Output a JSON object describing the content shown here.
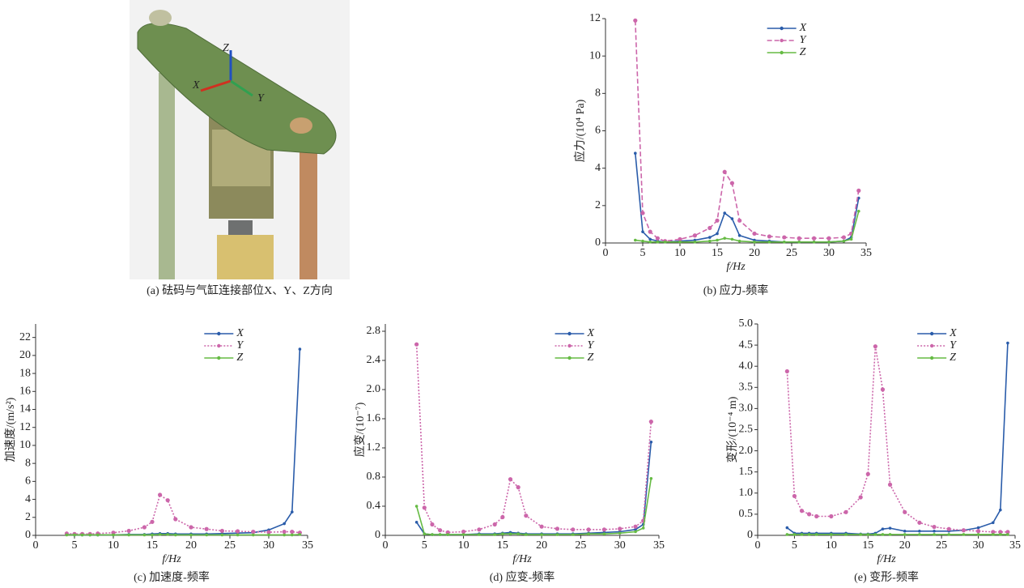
{
  "figure_a": {
    "caption": "(a) 砝码与气缸连接部位X、Y、Z方向",
    "axis_labels": [
      "Z",
      "X",
      "Y"
    ]
  },
  "chart_data": [
    {
      "type": "line",
      "caption": "(b) 应力-频率",
      "ylabel": "应力/(10⁴ Pa)",
      "xlabel": "f/Hz",
      "legend": "upper right",
      "x": [
        4,
        5,
        6,
        7,
        8,
        10,
        12,
        14,
        15,
        16,
        17,
        18,
        20,
        22,
        24,
        26,
        28,
        30,
        32,
        33,
        34
      ],
      "xlim": [
        0,
        35
      ],
      "xticks": [
        0,
        5,
        10,
        15,
        20,
        25,
        30,
        35
      ],
      "ylim": [
        0,
        12
      ],
      "yticks": [
        0,
        2,
        4,
        6,
        8,
        10,
        12
      ],
      "series": [
        {
          "name": "X",
          "color": "#2a5caa",
          "line_style": "solid",
          "values": [
            4.8,
            0.6,
            0.2,
            0.1,
            0.05,
            0.1,
            0.15,
            0.3,
            0.5,
            1.6,
            1.3,
            0.4,
            0.15,
            0.1,
            0.05,
            0.05,
            0.05,
            0.05,
            0.1,
            0.3,
            2.4
          ]
        },
        {
          "name": "Y",
          "color": "#cc66aa",
          "line_style": "dashed",
          "values": [
            11.9,
            1.6,
            0.6,
            0.25,
            0.1,
            0.2,
            0.4,
            0.8,
            1.2,
            3.8,
            3.2,
            1.2,
            0.5,
            0.35,
            0.3,
            0.25,
            0.25,
            0.25,
            0.3,
            0.5,
            2.8
          ]
        },
        {
          "name": "Z",
          "color": "#66bb44",
          "line_style": "solid",
          "values": [
            0.15,
            0.1,
            0.05,
            0.05,
            0.05,
            0.05,
            0.05,
            0.1,
            0.15,
            0.25,
            0.2,
            0.1,
            0.05,
            0.05,
            0.05,
            0.05,
            0.05,
            0.05,
            0.1,
            0.2,
            1.7
          ]
        }
      ]
    },
    {
      "type": "line",
      "caption": "(c) 加速度-频率",
      "ylabel": "加速度/(m/s²)",
      "xlabel": "f/Hz",
      "legend": "upper right",
      "x": [
        4,
        5,
        6,
        7,
        8,
        10,
        12,
        14,
        15,
        16,
        17,
        18,
        20,
        22,
        24,
        26,
        28,
        30,
        32,
        33,
        34
      ],
      "xlim": [
        0,
        35
      ],
      "xticks": [
        0,
        5,
        10,
        15,
        20,
        25,
        30,
        35
      ],
      "ylim": [
        0,
        23.5
      ],
      "yticks": [
        0,
        2,
        4,
        6,
        8,
        10,
        12,
        14,
        16,
        18,
        20,
        22
      ],
      "series": [
        {
          "name": "X",
          "color": "#2a5caa",
          "line_style": "solid",
          "values": [
            0.1,
            0.05,
            0.05,
            0.05,
            0.05,
            0.05,
            0.1,
            0.1,
            0.15,
            0.2,
            0.2,
            0.15,
            0.15,
            0.15,
            0.2,
            0.25,
            0.3,
            0.6,
            1.3,
            2.6,
            20.7
          ]
        },
        {
          "name": "Y",
          "color": "#cc66aa",
          "line_style": "dotted",
          "values": [
            0.2,
            0.15,
            0.15,
            0.15,
            0.2,
            0.3,
            0.5,
            0.9,
            1.5,
            4.5,
            3.9,
            1.8,
            0.9,
            0.7,
            0.5,
            0.45,
            0.4,
            0.35,
            0.4,
            0.4,
            0.3
          ]
        },
        {
          "name": "Z",
          "color": "#66bb44",
          "line_style": "solid",
          "values": [
            0.05,
            0.05,
            0.05,
            0.05,
            0.05,
            0.05,
            0.05,
            0.05,
            0.05,
            0.1,
            0.1,
            0.05,
            0.05,
            0.05,
            0.05,
            0.05,
            0.05,
            0.05,
            0.05,
            0.05,
            0.1
          ]
        }
      ]
    },
    {
      "type": "line",
      "caption": "(d) 应变-频率",
      "ylabel": "应变/(10⁻⁷)",
      "xlabel": "f/Hz",
      "legend": "upper right",
      "x": [
        4,
        5,
        6,
        7,
        8,
        10,
        12,
        14,
        15,
        16,
        17,
        18,
        20,
        22,
        24,
        26,
        28,
        30,
        32,
        33,
        34
      ],
      "xlim": [
        0,
        35
      ],
      "xticks": [
        0,
        5,
        10,
        15,
        20,
        25,
        30,
        35
      ],
      "ylim": [
        0,
        2.9
      ],
      "yticks": [
        0,
        0.4,
        0.8,
        1.2,
        1.6,
        {
          "value": 2,
          "label": "2.0"
        },
        2.4,
        2.8
      ],
      "series": [
        {
          "name": "X",
          "color": "#2a5caa",
          "line_style": "solid",
          "values": [
            0.18,
            0.02,
            0.01,
            0.01,
            0.01,
            0.01,
            0.02,
            0.02,
            0.03,
            0.04,
            0.03,
            0.02,
            0.02,
            0.02,
            0.02,
            0.03,
            0.04,
            0.05,
            0.08,
            0.15,
            1.28
          ]
        },
        {
          "name": "Y",
          "color": "#cc66aa",
          "line_style": "dotted",
          "values": [
            2.62,
            0.38,
            0.15,
            0.07,
            0.04,
            0.05,
            0.08,
            0.15,
            0.25,
            0.77,
            0.66,
            0.27,
            0.12,
            0.09,
            0.08,
            0.08,
            0.08,
            0.09,
            0.12,
            0.2,
            1.56
          ]
        },
        {
          "name": "Z",
          "color": "#66bb44",
          "line_style": "solid",
          "values": [
            0.4,
            0.02,
            0.01,
            0.01,
            0.01,
            0.01,
            0.01,
            0.01,
            0.02,
            0.02,
            0.02,
            0.01,
            0.01,
            0.01,
            0.01,
            0.02,
            0.02,
            0.03,
            0.05,
            0.1,
            0.78
          ]
        }
      ]
    },
    {
      "type": "line",
      "caption": "(e) 变形-频率",
      "ylabel": "变形/(10⁻⁴ m)",
      "xlabel": "f/Hz",
      "legend": "upper right",
      "x": [
        4,
        5,
        6,
        7,
        8,
        10,
        12,
        14,
        15,
        16,
        17,
        18,
        20,
        22,
        24,
        26,
        28,
        30,
        32,
        33,
        34
      ],
      "xlim": [
        0,
        35
      ],
      "xticks": [
        0,
        5,
        10,
        15,
        20,
        25,
        30,
        35
      ],
      "ylim": [
        0,
        5
      ],
      "yticks": [
        0,
        0.5,
        {
          "value": 1,
          "label": "1.0"
        },
        1.5,
        {
          "value": 2,
          "label": "2.0"
        },
        2.5,
        {
          "value": 3,
          "label": "3.0"
        },
        3.5,
        {
          "value": 4,
          "label": "4.0"
        },
        4.5,
        {
          "value": 5,
          "label": "5.0"
        }
      ],
      "series": [
        {
          "name": "X",
          "color": "#2a5caa",
          "line_style": "solid",
          "values": [
            0.18,
            0.05,
            0.05,
            0.05,
            0.05,
            0.05,
            0.05,
            0.03,
            0.03,
            0.05,
            0.15,
            0.17,
            0.1,
            0.1,
            0.1,
            0.1,
            0.12,
            0.18,
            0.3,
            0.6,
            4.55
          ]
        },
        {
          "name": "Y",
          "color": "#cc66aa",
          "line_style": "dotted",
          "values": [
            3.88,
            0.93,
            0.58,
            0.5,
            0.45,
            0.45,
            0.55,
            0.9,
            1.45,
            4.47,
            3.45,
            1.2,
            0.55,
            0.3,
            0.2,
            0.15,
            0.12,
            0.1,
            0.08,
            0.08,
            0.08
          ]
        },
        {
          "name": "Z",
          "color": "#66bb44",
          "line_style": "solid",
          "values": [
            0.02,
            0.02,
            0.02,
            0.02,
            0.02,
            0.02,
            0.02,
            0.02,
            0.02,
            0.02,
            0.02,
            0.02,
            0.02,
            0.02,
            0.02,
            0.02,
            0.02,
            0.02,
            0.02,
            0.02,
            0.02
          ]
        }
      ]
    }
  ]
}
